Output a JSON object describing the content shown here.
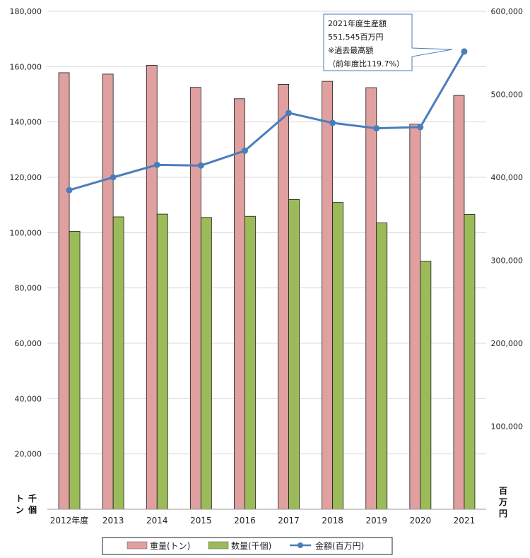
{
  "chart_data": {
    "type": "bar",
    "categories": [
      "2012年度",
      "2013",
      "2014",
      "2015",
      "2016",
      "2017",
      "2018",
      "2019",
      "2020",
      "2021"
    ],
    "series": [
      {
        "name": "重量(トン)",
        "type": "bar",
        "axis": "left",
        "color": "#e0a0a0",
        "values": [
          157800,
          157300,
          160500,
          152500,
          148400,
          153600,
          154700,
          152400,
          139200,
          149600
        ]
      },
      {
        "name": "数量(千個)",
        "type": "bar",
        "axis": "left",
        "color": "#9bbb59",
        "values": [
          100500,
          105700,
          106700,
          105500,
          105900,
          112000,
          110900,
          103500,
          89600,
          106600
        ]
      },
      {
        "name": "金額(百万円)",
        "type": "line",
        "axis": "right",
        "color": "#4a7ebb",
        "values": [
          384500,
          400000,
          415000,
          414200,
          432000,
          477500,
          465500,
          459000,
          460500,
          551545
        ]
      }
    ],
    "ylim_left": [
      0,
      180000
    ],
    "yticks_left": [
      "20,000",
      "40,000",
      "60,000",
      "80,000",
      "100,000",
      "120,000",
      "140,000",
      "160,000",
      "180,000"
    ],
    "ylim_right": [
      0,
      600000
    ],
    "yticks_right": [
      "100,000",
      "200,000",
      "300,000",
      "400,000",
      "500,000",
      "600,000"
    ],
    "left_unit_1": "千",
    "left_unit_1b": "個",
    "left_unit_2": "ト",
    "left_unit_2b": "ン",
    "right_unit_1": "百",
    "right_unit_2": "万",
    "right_unit_3": "円",
    "grid": true,
    "legend_position": "bottom",
    "annotation": {
      "lines": [
        "2021年度生産額",
        "551,545百万円",
        "※過去最高額",
        "（前年度比119.7%）"
      ]
    }
  },
  "colors": {
    "weight": "#e0a0a0",
    "quantity": "#9bbb59",
    "value": "#4a7ebb",
    "grid": "#d9d9d9"
  }
}
